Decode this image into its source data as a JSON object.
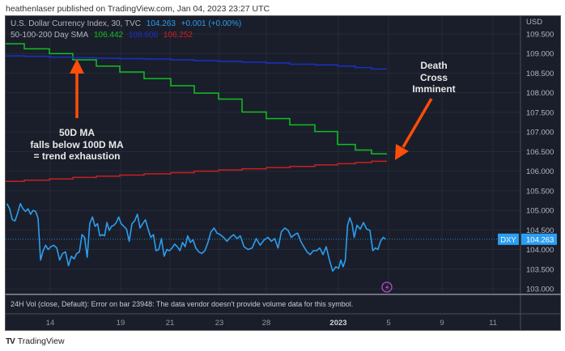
{
  "publisher_line": "heathenlaser published on TradingView.com, Jan 04, 2023 23:27 UTC",
  "legend": {
    "symbol": "U.S. Dollar Currency Index, 30, TVC",
    "price": "104.263",
    "change": "+0.001 (+0.00%)",
    "sma_label": "50-100-200 Day SMA",
    "sma50": "106.442",
    "sma100": "108.606",
    "sma200": "106.252"
  },
  "price_axis": {
    "currency": "USD",
    "ticks": [
      "109.500",
      "109.000",
      "108.500",
      "108.000",
      "107.500",
      "107.000",
      "106.500",
      "106.000",
      "105.500",
      "105.000",
      "104.500",
      "104.000",
      "103.500",
      "103.000"
    ]
  },
  "last_price": {
    "symbol": "DXY",
    "value": "104.263"
  },
  "time_axis": {
    "ticks": [
      "14",
      "19",
      "21",
      "23",
      "28",
      "2023",
      "5",
      "9",
      "11"
    ]
  },
  "volume_pane": {
    "message": "24H Vol (close, Default): Error on bar 23948: The data vendor doesn't provide volume data for this symbol."
  },
  "annotations": {
    "left": [
      "50D MA",
      "falls below 100D MA",
      "= trend exhaustion"
    ],
    "right": [
      "Death",
      "Cross",
      "Imminent"
    ]
  },
  "brand": "TradingView",
  "colors": {
    "background": "#1a1e2a",
    "price": "#2b9ef0",
    "sma50": "#10c020",
    "sma100": "#1a30c8",
    "sma200": "#c82020",
    "arrow": "#ff4d0a",
    "grid": "#262b38"
  },
  "chart_data": {
    "type": "line",
    "ylim": [
      103.0,
      109.5
    ],
    "days": [
      "2022-12-12",
      "2022-12-13",
      "2022-12-14",
      "2022-12-15",
      "2022-12-16",
      "2022-12-19",
      "2022-12-20",
      "2022-12-21",
      "2022-12-22",
      "2022-12-23",
      "2022-12-27",
      "2022-12-28",
      "2022-12-29",
      "2022-12-30",
      "2023-01-02",
      "2023-01-03",
      "2023-01-04"
    ],
    "series": [
      {
        "name": "U.S. Dollar Currency Index",
        "intraday": [
          [
            105.17,
            105.04,
            104.76,
            104.73,
            104.93,
            105.17,
            105.04
          ],
          [
            104.97,
            105.04,
            104.9,
            105.0,
            104.97,
            104.8,
            103.73,
            103.97,
            104.11,
            104.0
          ],
          [
            104.07,
            104.11,
            104.04,
            103.73,
            103.9,
            103.94,
            103.59,
            103.83
          ],
          [
            103.76,
            103.9,
            103.94,
            104.38,
            104.31,
            103.8,
            104.66,
            104.83,
            104.59
          ],
          [
            104.66,
            104.35,
            104.38,
            104.35,
            104.69,
            104.49,
            104.59,
            104.62,
            104.69,
            104.83
          ],
          [
            104.66,
            104.59,
            104.52,
            104.21,
            104.66,
            104.73,
            104.9,
            104.55,
            104.66
          ],
          [
            104.76,
            104.52,
            104.31,
            104.38,
            103.97,
            104.0,
            104.28,
            103.83,
            104.0,
            103.97
          ],
          [
            104.04,
            104.14,
            104.07,
            103.97,
            104.18,
            104.07,
            104.35,
            104.18,
            104.25
          ],
          [
            104.04,
            103.94,
            103.9,
            103.97,
            104.18,
            104.45,
            104.55,
            104.42
          ],
          [
            104.38,
            104.31,
            104.21,
            104.31,
            104.38,
            104.28,
            104.35
          ],
          [
            104.07,
            104.0,
            104.04,
            104.28,
            104.11,
            104.25
          ],
          [
            104.31,
            104.21,
            104.28,
            104.04,
            104.45,
            104.55,
            104.49
          ],
          [
            104.31,
            104.38,
            104.42,
            104.21,
            104.07,
            103.94,
            103.87,
            103.97
          ],
          [
            103.97,
            104.04,
            103.87,
            104.07,
            103.73,
            103.45,
            103.56
          ],
          [
            103.52,
            103.73,
            103.56,
            103.73,
            104.62,
            104.81,
            104.66,
            104.31
          ],
          [
            104.62,
            104.52,
            104.69,
            104.52,
            104.49
          ],
          [
            103.97,
            104.04,
            104.0,
            104.21,
            104.31,
            104.263
          ]
        ]
      },
      {
        "name": "SMA 50",
        "daily": [
          109.25,
          109.12,
          109.0,
          108.84,
          108.68,
          108.53,
          108.36,
          108.18,
          107.99,
          107.84,
          107.51,
          107.34,
          107.18,
          107.01,
          106.68,
          106.54,
          106.442
        ]
      },
      {
        "name": "SMA 100",
        "daily": [
          108.94,
          108.93,
          108.91,
          108.89,
          108.88,
          108.87,
          108.86,
          108.84,
          108.82,
          108.8,
          108.78,
          108.76,
          108.73,
          108.71,
          108.68,
          108.64,
          108.606
        ]
      },
      {
        "name": "SMA 200",
        "daily": [
          105.74,
          105.77,
          105.8,
          105.84,
          105.87,
          105.9,
          105.93,
          105.96,
          106.0,
          106.03,
          106.06,
          106.09,
          106.12,
          106.16,
          106.19,
          106.22,
          106.252
        ]
      }
    ]
  }
}
